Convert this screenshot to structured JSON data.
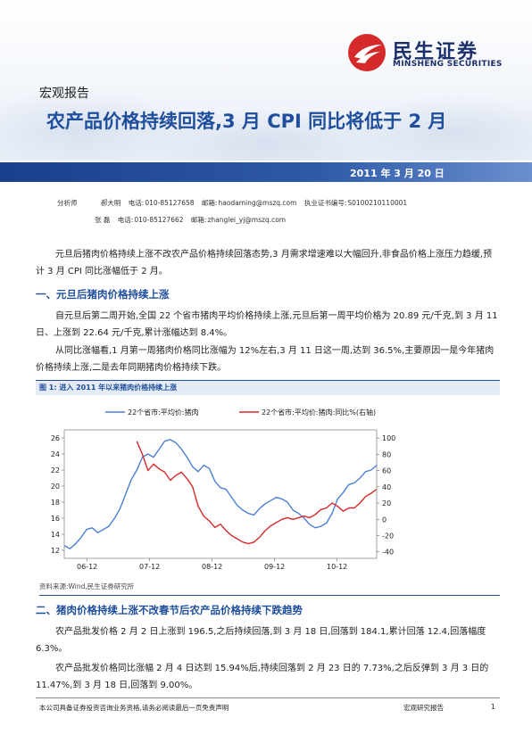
{
  "header": {
    "logo_cn": "民生证券",
    "logo_en": "MINSHENG SECURITIES",
    "report_type": "宏观报告",
    "title": "农产品价格持续回落,3 月 CPI 同比将低于 2 月",
    "date": "2011 年 3 月 20 日"
  },
  "analysts": {
    "label_analyst": "分析师",
    "row1": {
      "name": "郝大明",
      "phone_label": "电话:",
      "phone": "010-85127658",
      "email_label": "邮箱:",
      "email": "haodaming@mszq.com",
      "cert_label": "执业证书编号:",
      "cert": "S0100210110001"
    },
    "row2": {
      "name": "张 磊",
      "phone_label": "电话:",
      "phone": "010-85127662",
      "email_label": "邮箱:",
      "email": "zhanglei_yj@mszq.com"
    }
  },
  "body": {
    "intro": "元旦后猪肉价格持续上涨不改农产品价格持续回落态势,3 月需求增速难以大幅回升,非食品价格上涨压力趋缓,预计 3 月 CPI 同比涨幅低于 2 月。",
    "section1_title": "一、元旦后猪肉价格持续上涨",
    "section1_p1": "自元旦后第二周开始,全国 22 个省市猪肉平均价格持续上涨,元旦后第一周平均价格为 20.89 元/千克,到 3 月 11 日、上涨到 22.64 元/千克,累计涨幅达到 8.4%。",
    "section1_p2": "从同比涨幅看,1 月第一周猪肉价格同比涨幅为 12%左右,3 月 11 日这一周,达到 36.5%,主要原因一是今年猪肉价格持续上涨,二是去年同期猪肉价格持续下跌。",
    "figure_caption": "图 1: 进入 2011 年以来猪肉价格持续上涨",
    "source": "资料来源:Wind,民生证券研究所",
    "section2_title": "二、猪肉价格持续上涨不改春节后农产品价格持续下跌趋势",
    "section2_p1": "农产品批发价格 2 月 2 日上涨到 196.5,之后持续回落,到 3 月 18 日,回落到 184.1,累计回落 12.4,回落幅度 6.3%。",
    "section2_p2": "农产品批发价格同比涨幅 2 月 4 日达到 15.94%后,持续回落到 2 月 23 日的 7.73%,之后反弹到 3 月 3 日的 11.47%,到 3 月 18 日,回落到 9.00%。"
  },
  "footer": {
    "disclaimer": "本公司具备证券投资咨询业务资格,请务必阅读最后一页免责声明",
    "report_label": "宏观研究报告",
    "page": "1"
  },
  "chart_data": {
    "type": "line",
    "x_ticks": [
      "06-12",
      "07-12",
      "08-12",
      "09-12",
      "10-12"
    ],
    "y_left_ticks": [
      "26",
      "24",
      "22",
      "20",
      "18",
      "16",
      "14",
      "12"
    ],
    "y_right_ticks": [
      "100",
      "80",
      "60",
      "40",
      "20",
      "0",
      "-20",
      "-40"
    ],
    "y_left_range": [
      11,
      27
    ],
    "y_right_range": [
      -48,
      110
    ],
    "x_range": [
      0,
      56
    ],
    "legend_position": "top",
    "series": [
      {
        "name": "22个省市:平均价:猪肉",
        "axis": "left",
        "color": "#4a7fd4",
        "points": [
          [
            0,
            12.6
          ],
          [
            1,
            12.2
          ],
          [
            2,
            12.8
          ],
          [
            3,
            13.6
          ],
          [
            4,
            14.6
          ],
          [
            5,
            14.8
          ],
          [
            6,
            14.2
          ],
          [
            7,
            14.6
          ],
          [
            8,
            15.0
          ],
          [
            9,
            16.0
          ],
          [
            10,
            17.2
          ],
          [
            11,
            19.0
          ],
          [
            12,
            20.8
          ],
          [
            13,
            22.0
          ],
          [
            14,
            23.6
          ],
          [
            15,
            24.0
          ],
          [
            16,
            23.6
          ],
          [
            17,
            24.6
          ],
          [
            18,
            25.6
          ],
          [
            19,
            25.8
          ],
          [
            20,
            25.4
          ],
          [
            21,
            24.6
          ],
          [
            22,
            23.6
          ],
          [
            23,
            22.4
          ],
          [
            24,
            21.8
          ],
          [
            25,
            22.6
          ],
          [
            26,
            22.2
          ],
          [
            27,
            20.6
          ],
          [
            28,
            19.8
          ],
          [
            29,
            19.6
          ],
          [
            30,
            18.6
          ],
          [
            31,
            17.6
          ],
          [
            32,
            17.0
          ],
          [
            33,
            16.6
          ],
          [
            34,
            16.4
          ],
          [
            35,
            17.2
          ],
          [
            36,
            17.8
          ],
          [
            37,
            18.2
          ],
          [
            38,
            18.6
          ],
          [
            39,
            18.4
          ],
          [
            40,
            18.0
          ],
          [
            41,
            17.0
          ],
          [
            42,
            16.6
          ],
          [
            43,
            16.0
          ],
          [
            44,
            15.2
          ],
          [
            45,
            14.8
          ],
          [
            46,
            15.0
          ],
          [
            47,
            15.4
          ],
          [
            48,
            16.6
          ],
          [
            49,
            18.4
          ],
          [
            50,
            19.2
          ],
          [
            51,
            20.2
          ],
          [
            52,
            20.4
          ],
          [
            53,
            21.0
          ],
          [
            54,
            21.8
          ],
          [
            55,
            22.0
          ],
          [
            56,
            22.6
          ]
        ]
      },
      {
        "name": "22个省市:平均价:猪肉:同比%(右轴)",
        "axis": "right",
        "color": "#d42a2a",
        "points": [
          [
            13,
            96
          ],
          [
            14,
            80
          ],
          [
            15,
            60
          ],
          [
            16,
            68
          ],
          [
            17,
            62
          ],
          [
            18,
            58
          ],
          [
            19,
            48
          ],
          [
            20,
            54
          ],
          [
            21,
            58
          ],
          [
            22,
            50
          ],
          [
            23,
            40
          ],
          [
            24,
            16
          ],
          [
            25,
            4
          ],
          [
            26,
            -2
          ],
          [
            27,
            -10
          ],
          [
            28,
            -6
          ],
          [
            29,
            -14
          ],
          [
            30,
            -20
          ],
          [
            31,
            -24
          ],
          [
            32,
            -28
          ],
          [
            33,
            -30
          ],
          [
            34,
            -28
          ],
          [
            35,
            -22
          ],
          [
            36,
            -14
          ],
          [
            37,
            -8
          ],
          [
            38,
            -4
          ],
          [
            39,
            0
          ],
          [
            40,
            2
          ],
          [
            41,
            0
          ],
          [
            42,
            2
          ],
          [
            43,
            4
          ],
          [
            44,
            2
          ],
          [
            45,
            6
          ],
          [
            46,
            12
          ],
          [
            47,
            14
          ],
          [
            48,
            20
          ],
          [
            49,
            16
          ],
          [
            50,
            10
          ],
          [
            51,
            14
          ],
          [
            52,
            14
          ],
          [
            53,
            20
          ],
          [
            54,
            28
          ],
          [
            55,
            32
          ],
          [
            56,
            37
          ]
        ]
      }
    ]
  }
}
